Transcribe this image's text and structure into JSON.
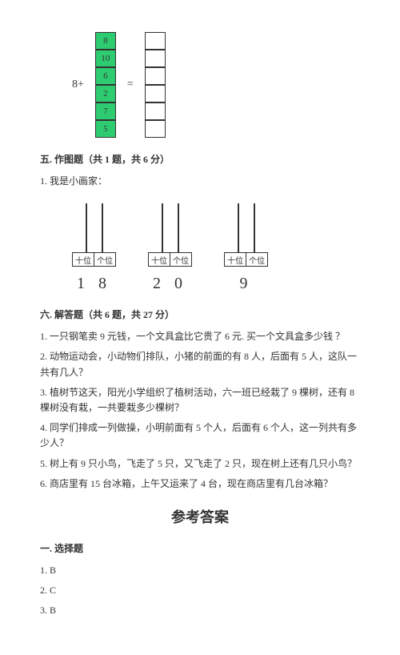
{
  "stack_diagram": {
    "left_label": "8+",
    "green_cells": [
      "8",
      "10",
      "6",
      "2",
      "7",
      "5"
    ],
    "empty_count": 6,
    "eq_label": "=",
    "cell_bg": "#2ecc71",
    "border": "#333333"
  },
  "section5": {
    "title": "五. 作图题（共 1 题，共 6 分）",
    "q1": "1. 我是小画家：",
    "abacuses": [
      {
        "tens": "十位",
        "ones": "个位",
        "number": "1 8"
      },
      {
        "tens": "十位",
        "ones": "个位",
        "number": "2 0"
      },
      {
        "tens": "十位",
        "ones": "个位",
        "number": "9"
      }
    ]
  },
  "section6": {
    "title": "六. 解答题（共 6 题，共 27 分）",
    "items": [
      "1. 一只钢笔卖 9 元钱，一个文具盒比它贵了 6 元. 买一个文具盒多少钱 ？",
      "2. 动物运动会，小动物们排队，小猪的前面的有 8 人，后面有 5 人，这队一共有几人？",
      "3. 植树节这天，阳光小学组织了植树活动，六一班已经栽了 9 棵树，还有 8 棵树没有栽，一共要栽多少棵树？",
      "4. 同学们排成一列做操，小明前面有 5 个人，后面有 6 个人，这一列共有多少人？",
      "5. 树上有 9 只小鸟，飞走了 5 只，又飞走了 2 只，现在树上还有几只小鸟？",
      "6. 商店里有 15 台冰箱，上午又运来了 4 台，现在商店里有几台冰箱？"
    ]
  },
  "answers": {
    "title": "参考答案",
    "section1_title": "一. 选择题",
    "items": [
      "1. B",
      "2. C",
      "3. B"
    ]
  }
}
